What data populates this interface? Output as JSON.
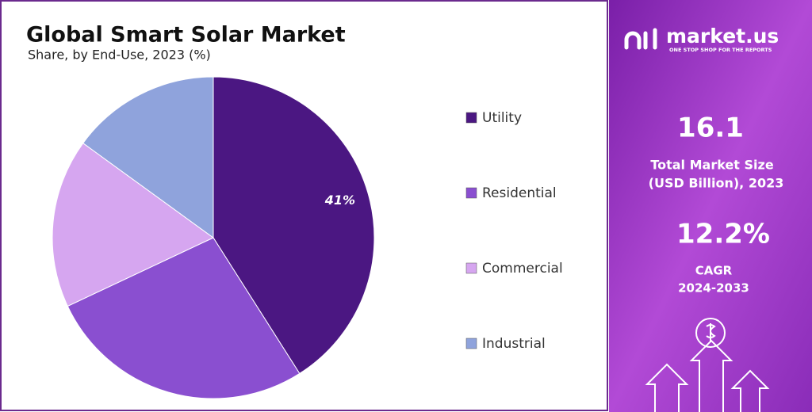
{
  "chart_data": {
    "type": "pie",
    "title": "Global Smart Solar Market",
    "subtitle": "Share, by End-Use, 2023 (%)",
    "categories": [
      "Utility",
      "Residential",
      "Commercial",
      "Industrial"
    ],
    "values": [
      41,
      27,
      17,
      15
    ],
    "value_labels": [
      "41%",
      null,
      null,
      null
    ],
    "colors": [
      "#4b1782",
      "#8a4fd0",
      "#d6a6f0",
      "#8fa3dc"
    ],
    "legend": "right"
  },
  "panel": {
    "brand": "market.us",
    "tagline": "ONE STOP SHOP FOR THE REPORTS",
    "market_size": "16.1",
    "market_size_label": [
      "Total Market Size",
      "(USD Billion), 2023"
    ],
    "cagr": "12.2%",
    "cagr_label": [
      "CAGR",
      "2024-2033"
    ]
  }
}
